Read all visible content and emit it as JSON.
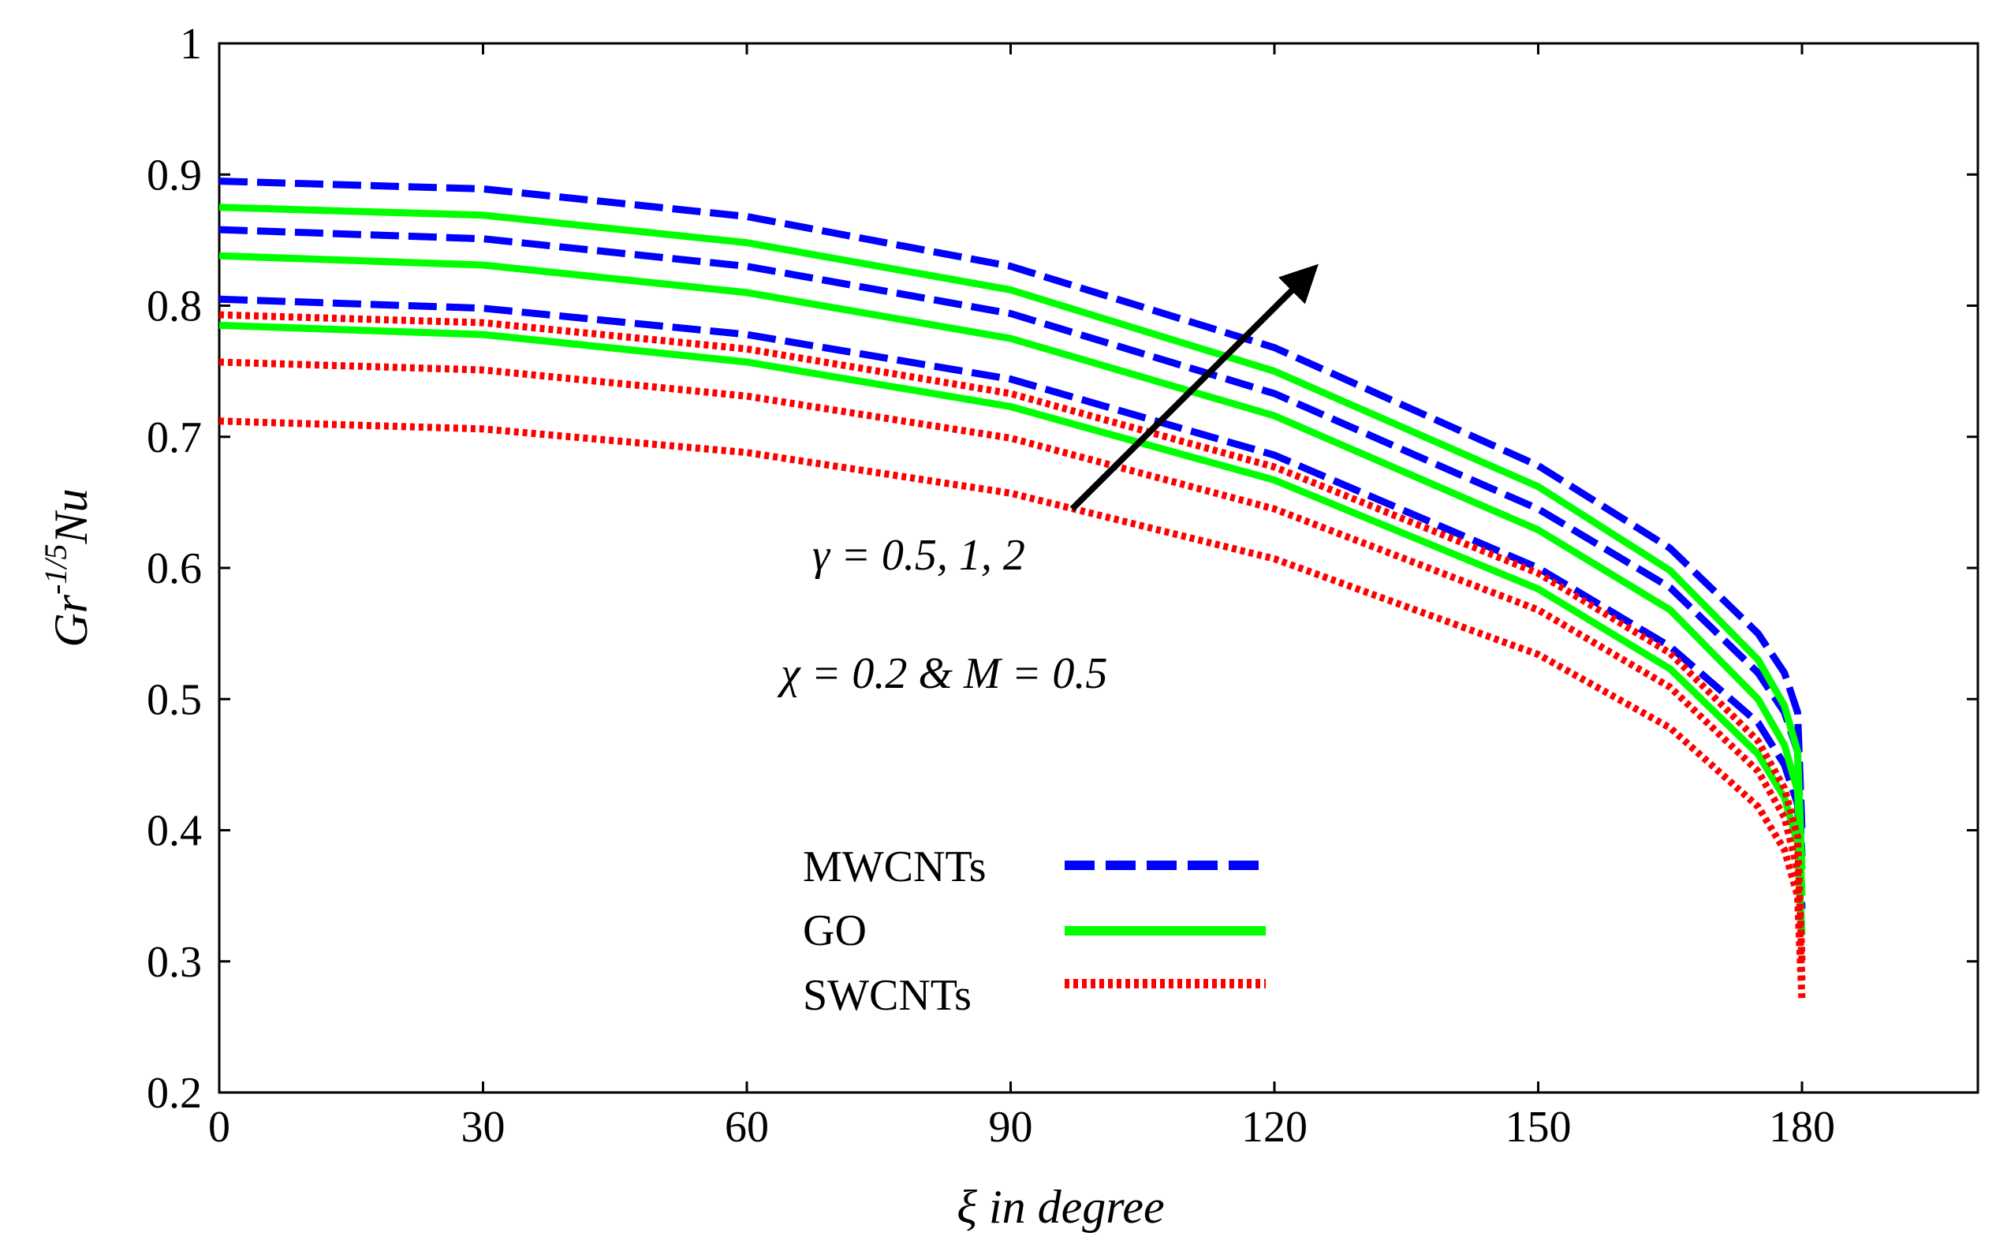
{
  "chart_data": {
    "type": "line",
    "title": "",
    "xlabel": "ξ in degree",
    "ylabel": {
      "base": "Gr",
      "sup": "-1/5",
      "tail": "Nu"
    },
    "xlim": [
      0,
      200
    ],
    "ylim": [
      0.2,
      1.0
    ],
    "xticks": [
      0,
      30,
      60,
      90,
      120,
      150,
      180
    ],
    "yticks": [
      0.2,
      0.3,
      0.4,
      0.5,
      0.6,
      0.7,
      0.8,
      0.9,
      1.0
    ],
    "xtick_labels": [
      "0",
      "30",
      "60",
      "90",
      "120",
      "150",
      "180"
    ],
    "ytick_labels": [
      "0.2",
      "0.3",
      "0.4",
      "0.5",
      "0.6",
      "0.7",
      "0.8",
      "0.9",
      "1"
    ],
    "grid": false,
    "legend_position": "bottom-center",
    "legend": [
      {
        "label": "MWCNTs",
        "color": "#0000ff",
        "style": "dashed"
      },
      {
        "label": "GO",
        "color": "#00ff00",
        "style": "solid"
      },
      {
        "label": "SWCNTs",
        "color": "#ff0000",
        "style": "dotted"
      }
    ],
    "annotations": {
      "gamma": "γ = 0.5, 1, 2",
      "params": "χ = 0.2 & M = 0.5"
    },
    "arrow": {
      "from": [
        97,
        0.645
      ],
      "to": [
        124,
        0.825
      ]
    },
    "x": [
      0,
      30,
      60,
      90,
      120,
      150,
      165,
      175,
      178,
      179.5,
      180
    ],
    "series": [
      {
        "name": "MWCNTs γ=0.5",
        "group": "MWCNTs",
        "gamma": 0.5,
        "color": "#0000ff",
        "style": "dashed",
        "values": [
          0.805,
          0.798,
          0.778,
          0.744,
          0.686,
          0.6,
          0.54,
          0.482,
          0.45,
          0.42,
          0.34
        ]
      },
      {
        "name": "MWCNTs γ=1",
        "group": "MWCNTs",
        "gamma": 1,
        "color": "#0000ff",
        "style": "dashed",
        "values": [
          0.858,
          0.851,
          0.83,
          0.794,
          0.733,
          0.645,
          0.585,
          0.52,
          0.49,
          0.46,
          0.38
        ]
      },
      {
        "name": "MWCNTs γ=2",
        "group": "MWCNTs",
        "gamma": 2,
        "color": "#0000ff",
        "style": "dashed",
        "values": [
          0.895,
          0.889,
          0.868,
          0.83,
          0.768,
          0.678,
          0.615,
          0.55,
          0.52,
          0.49,
          0.4
        ]
      },
      {
        "name": "GO γ=0.5",
        "group": "GO",
        "gamma": 0.5,
        "color": "#00ff00",
        "style": "solid",
        "values": [
          0.785,
          0.778,
          0.757,
          0.723,
          0.667,
          0.584,
          0.523,
          0.458,
          0.425,
          0.39,
          0.32
        ]
      },
      {
        "name": "GO γ=1",
        "group": "GO",
        "gamma": 1,
        "color": "#00ff00",
        "style": "solid",
        "values": [
          0.838,
          0.831,
          0.81,
          0.775,
          0.716,
          0.629,
          0.568,
          0.5,
          0.465,
          0.43,
          0.35
        ]
      },
      {
        "name": "GO γ=2",
        "group": "GO",
        "gamma": 2,
        "color": "#00ff00",
        "style": "solid",
        "values": [
          0.875,
          0.869,
          0.848,
          0.812,
          0.75,
          0.662,
          0.598,
          0.53,
          0.495,
          0.46,
          0.37
        ]
      },
      {
        "name": "SWCNTs γ=0.5",
        "group": "SWCNTs",
        "gamma": 0.5,
        "color": "#ff0000",
        "style": "dotted",
        "values": [
          0.712,
          0.706,
          0.688,
          0.657,
          0.607,
          0.534,
          0.478,
          0.418,
          0.385,
          0.35,
          0.27
        ]
      },
      {
        "name": "SWCNTs γ=1",
        "group": "SWCNTs",
        "gamma": 1,
        "color": "#ff0000",
        "style": "dotted",
        "values": [
          0.757,
          0.751,
          0.731,
          0.699,
          0.645,
          0.568,
          0.509,
          0.445,
          0.41,
          0.37,
          0.285
        ]
      },
      {
        "name": "SWCNTs γ=2",
        "group": "SWCNTs",
        "gamma": 2,
        "color": "#ff0000",
        "style": "dotted",
        "values": [
          0.793,
          0.787,
          0.767,
          0.733,
          0.677,
          0.596,
          0.535,
          0.468,
          0.432,
          0.395,
          0.3
        ]
      }
    ]
  }
}
